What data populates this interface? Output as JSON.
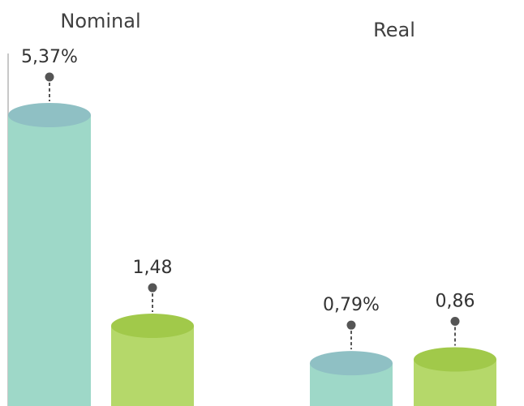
{
  "chart_data": {
    "type": "bar",
    "groups": [
      "Nominal",
      "Real"
    ],
    "series": [
      {
        "values": [
          5.37,
          0.79
        ],
        "labels": [
          "5,37%",
          "0,79%"
        ],
        "color": "#9ed8c8",
        "top_color": "#8fc0c4"
      },
      {
        "values": [
          1.48,
          0.86
        ],
        "labels": [
          "1,48",
          "0,86"
        ],
        "color": "#b5d86a",
        "top_color": "#a1c94a"
      }
    ],
    "title": "",
    "xlabel": "",
    "ylabel": "",
    "ylim": [
      0,
      5.37
    ],
    "grid": false,
    "legend": "none"
  }
}
